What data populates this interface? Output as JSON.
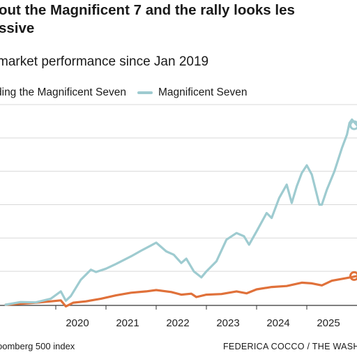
{
  "title": "out the Magnificent 7 and the rally looks les\nssive",
  "subtitle": "market performance since Jan 2019",
  "legend": {
    "item0": "ding the Magnificent Seven",
    "item1": "Magnificent Seven"
  },
  "source": "oomberg 500 index",
  "credit": "FEDERICA COCCO / THE WASHIN",
  "colors": {
    "mag7": "#9ecbd0",
    "ex": "#e0713a",
    "grid": "#d9d9d9",
    "axis": "#333333"
  },
  "chart_data": {
    "type": "line",
    "title": "out the Magnificent 7 and the rally looks les ssive",
    "subtitle": "market performance since Jan 2019",
    "xlabel": "",
    "ylabel": "",
    "x_tick_labels": [
      "2020",
      "2021",
      "2022",
      "2023",
      "2024",
      "2025"
    ],
    "xlim": [
      2019.0,
      2026.0
    ],
    "ylim": [
      0,
      6
    ],
    "grid": true,
    "legend_position": "top",
    "series": [
      {
        "name": "ding the Magnificent Seven",
        "color": "#e0713a",
        "points": [
          [
            2019.0,
            0.0
          ],
          [
            2019.3,
            0.03
          ],
          [
            2019.6,
            0.06
          ],
          [
            2019.9,
            0.1
          ],
          [
            2020.1,
            0.13
          ],
          [
            2020.2,
            -0.05
          ],
          [
            2020.35,
            0.06
          ],
          [
            2020.6,
            0.1
          ],
          [
            2020.9,
            0.18
          ],
          [
            2021.2,
            0.28
          ],
          [
            2021.5,
            0.36
          ],
          [
            2021.8,
            0.4
          ],
          [
            2022.0,
            0.44
          ],
          [
            2022.3,
            0.38
          ],
          [
            2022.5,
            0.3
          ],
          [
            2022.7,
            0.33
          ],
          [
            2022.8,
            0.23
          ],
          [
            2023.0,
            0.3
          ],
          [
            2023.3,
            0.32
          ],
          [
            2023.6,
            0.4
          ],
          [
            2023.8,
            0.34
          ],
          [
            2024.0,
            0.46
          ],
          [
            2024.3,
            0.53
          ],
          [
            2024.6,
            0.56
          ],
          [
            2024.9,
            0.66
          ],
          [
            2025.1,
            0.64
          ],
          [
            2025.3,
            0.58
          ],
          [
            2025.5,
            0.72
          ],
          [
            2025.8,
            0.8
          ],
          [
            2026.0,
            0.86
          ]
        ]
      },
      {
        "name": "Magnificent Seven",
        "color": "#9ecbd0",
        "points": [
          [
            2019.0,
            0.0
          ],
          [
            2019.3,
            0.08
          ],
          [
            2019.6,
            0.07
          ],
          [
            2019.9,
            0.18
          ],
          [
            2020.1,
            0.4
          ],
          [
            2020.2,
            0.12
          ],
          [
            2020.3,
            0.26
          ],
          [
            2020.5,
            0.75
          ],
          [
            2020.7,
            1.05
          ],
          [
            2020.8,
            0.98
          ],
          [
            2021.0,
            1.08
          ],
          [
            2021.2,
            1.22
          ],
          [
            2021.5,
            1.45
          ],
          [
            2021.7,
            1.62
          ],
          [
            2021.9,
            1.78
          ],
          [
            2022.0,
            1.86
          ],
          [
            2022.2,
            1.6
          ],
          [
            2022.35,
            1.5
          ],
          [
            2022.5,
            1.25
          ],
          [
            2022.6,
            1.38
          ],
          [
            2022.75,
            1.0
          ],
          [
            2022.9,
            0.82
          ],
          [
            2023.0,
            1.0
          ],
          [
            2023.2,
            1.3
          ],
          [
            2023.4,
            1.95
          ],
          [
            2023.6,
            2.15
          ],
          [
            2023.75,
            2.05
          ],
          [
            2023.85,
            1.8
          ],
          [
            2024.0,
            2.2
          ],
          [
            2024.2,
            2.75
          ],
          [
            2024.3,
            2.6
          ],
          [
            2024.45,
            3.2
          ],
          [
            2024.6,
            3.6
          ],
          [
            2024.7,
            3.05
          ],
          [
            2024.8,
            3.55
          ],
          [
            2024.9,
            3.95
          ],
          [
            2025.0,
            4.18
          ],
          [
            2025.1,
            3.9
          ],
          [
            2025.2,
            3.3
          ],
          [
            2025.25,
            3.0
          ],
          [
            2025.3,
            3.0
          ],
          [
            2025.4,
            3.45
          ],
          [
            2025.55,
            4.0
          ],
          [
            2025.7,
            4.7
          ],
          [
            2025.8,
            5.1
          ],
          [
            2025.85,
            5.45
          ],
          [
            2025.9,
            5.55
          ],
          [
            2026.0,
            5.38
          ]
        ]
      }
    ]
  }
}
